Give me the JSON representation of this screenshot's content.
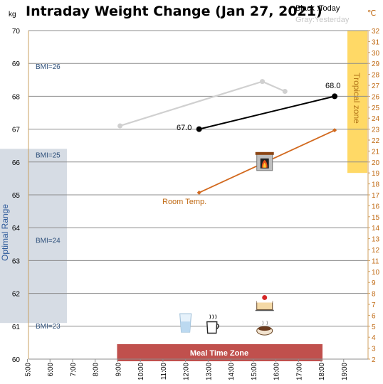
{
  "chart_data": {
    "type": "line",
    "title": "Intraday Weight Change (Jan 27, 2021)",
    "legend": {
      "today": "Black :Today",
      "yesterday": "Gray:Yesterday",
      "placement": "top-right"
    },
    "y_left": {
      "unit": "kg",
      "range": [
        60,
        70
      ],
      "ticks": [
        "60",
        "61",
        "62",
        "63",
        "64",
        "65",
        "66",
        "67",
        "68",
        "69",
        "70"
      ]
    },
    "y_right": {
      "unit": "℃",
      "range": [
        2,
        32
      ],
      "ticks": [
        "2",
        "3",
        "4",
        "5",
        "6",
        "7",
        "8",
        "9",
        "10",
        "11",
        "12",
        "13",
        "14",
        "15",
        "16",
        "17",
        "18",
        "19",
        "20",
        "21",
        "22",
        "23",
        "24",
        "25",
        "26",
        "27",
        "28",
        "29",
        "30",
        "31",
        "32"
      ]
    },
    "x": {
      "range": [
        5,
        20
      ],
      "ticks": [
        {
          "v": 5,
          "label": "5:00"
        },
        {
          "v": 6,
          "label": "6:00"
        },
        {
          "v": 7,
          "label": "7:00"
        },
        {
          "v": 8,
          "label": "8:00"
        },
        {
          "v": 9,
          "label": "9:00"
        },
        {
          "v": 10,
          "label": "10:00"
        },
        {
          "v": 11,
          "label": "11:00"
        },
        {
          "v": 12,
          "label": "12:00"
        },
        {
          "v": 13,
          "label": "13:00"
        },
        {
          "v": 14,
          "label": "14:00"
        },
        {
          "v": 15,
          "label": "15:00"
        },
        {
          "v": 16,
          "label": "16:00"
        },
        {
          "v": 17,
          "label": "17:00"
        },
        {
          "v": 18,
          "label": "18:00"
        },
        {
          "v": 19,
          "label": "19:00"
        }
      ]
    },
    "bmi_lines": [
      {
        "label": "BMI=26",
        "kg": 68.9
      },
      {
        "label": "BMI=25",
        "kg": 66.2
      },
      {
        "label": "BMI=24",
        "kg": 63.6
      },
      {
        "label": "BMI=23",
        "kg": 61.0
      }
    ],
    "bands": {
      "optimal": {
        "label": "Optimal Range",
        "kg_range": [
          61.1,
          66.4
        ],
        "color": "#d6dce4"
      },
      "tropical": {
        "label": "Tropical zone",
        "temp_range": [
          19,
          32
        ],
        "color": "#ffd966"
      },
      "meal": {
        "label": "Meal Time Zone",
        "x_range": [
          9.0,
          18.0
        ],
        "color": "#c0504d"
      }
    },
    "series": [
      {
        "name": "Today",
        "color": "#000000",
        "axis": "left",
        "points": [
          {
            "x": 12.6,
            "y": 67.0
          },
          {
            "x": 18.6,
            "y": 68.0
          }
        ],
        "labels": [
          "67.0",
          "68.0"
        ]
      },
      {
        "name": "Yesterday",
        "color": "#d0d0d0",
        "axis": "left",
        "points": [
          {
            "x": 9.1,
            "y": 67.1
          },
          {
            "x": 15.4,
            "y": 68.45
          },
          {
            "x": 16.4,
            "y": 68.15
          }
        ]
      },
      {
        "name": "Room Temp.",
        "color": "#d2691e",
        "axis": "right",
        "points": [
          {
            "x": 12.6,
            "y": 17.2
          },
          {
            "x": 18.6,
            "y": 22.9
          }
        ]
      }
    ],
    "icons": [
      {
        "name": "fireplace-icon",
        "x": 15.5,
        "kg": 66.0
      },
      {
        "name": "water-glass-icon",
        "x": 12.0,
        "kg": 61.1
      },
      {
        "name": "coffee-cup-icon",
        "x": 13.2,
        "kg": 61.05
      },
      {
        "name": "cake-icon",
        "x": 15.5,
        "kg": 61.7
      },
      {
        "name": "hot-drink-bowl-icon",
        "x": 15.5,
        "kg": 60.95
      }
    ],
    "grid": true
  }
}
